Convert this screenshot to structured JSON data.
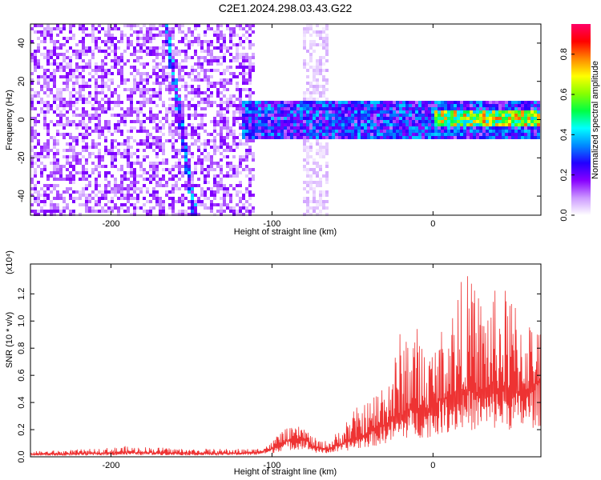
{
  "chart_data": [
    {
      "type": "heatmap",
      "title": "C2E1.2024.298.03.43.G22",
      "xlabel": "Height of straight line (km)",
      "ylabel": "Frequency (Hz)",
      "xlim": [
        -250,
        67
      ],
      "ylim": [
        -50,
        50
      ],
      "xticks": [
        -200,
        -100,
        0
      ],
      "yticks": [
        -40,
        -20,
        0,
        20,
        40
      ],
      "colorbar": {
        "label": "Normalized spectral amplitude",
        "range": [
          0,
          0.95
        ],
        "ticks": [
          "0.0",
          "0.2",
          "0.4",
          "0.6",
          "0.8"
        ],
        "colors": [
          "#ffffff",
          "#cc99ff",
          "#8800ff",
          "#2200ff",
          "#0088ff",
          "#00ffff",
          "#00ff44",
          "#88ff00",
          "#ffff00",
          "#ff8800",
          "#ff0000",
          "#ff0066"
        ]
      },
      "description_regions": [
        {
          "x_range": [
            -250,
            -110
          ],
          "y_range": [
            -50,
            50
          ],
          "amplitude_level": 0.12
        },
        {
          "x_range": [
            -80,
            -65
          ],
          "y_range": [
            -50,
            50
          ],
          "amplitude_level": 0.05
        },
        {
          "x_range": [
            -118,
            67
          ],
          "y_range": [
            -10,
            10
          ],
          "amplitude_level": 0.3
        },
        {
          "x_range": [
            0,
            67
          ],
          "y_range": [
            -3,
            5
          ],
          "amplitude_level": 0.7
        }
      ],
      "streak": {
        "x_start": -166,
        "y_start": 50,
        "x_end": -148,
        "y_end": -50
      }
    },
    {
      "type": "line",
      "ylabel": "SNR (10 * v/v)",
      "y_multiplier": "(x10⁴)",
      "xlabel": "Height of straight line (km)",
      "xlim": [
        -250,
        67
      ],
      "ylim": [
        0,
        1.42
      ],
      "xticks": [
        -200,
        -100,
        0
      ],
      "yticks": [
        "0.0",
        "0.2",
        "0.4",
        "0.6",
        "0.8",
        "1.0",
        "1.2"
      ],
      "color": "#ee3333",
      "series": [
        {
          "x": [
            -250,
            -230,
            -210,
            -190,
            -170,
            -150,
            -130,
            -110,
            -100,
            -95,
            -90,
            -85,
            -80,
            -75,
            -70,
            -65,
            -60,
            -55,
            -50,
            -45,
            -40,
            -35,
            -30,
            -25,
            -20,
            -15,
            -10,
            -5,
            0,
            5,
            10,
            15,
            20,
            25,
            30,
            35,
            40,
            45,
            50,
            55,
            60,
            65
          ],
          "values": [
            0.02,
            0.02,
            0.025,
            0.03,
            0.03,
            0.025,
            0.025,
            0.03,
            0.06,
            0.1,
            0.12,
            0.13,
            0.14,
            0.08,
            0.06,
            0.06,
            0.08,
            0.1,
            0.13,
            0.15,
            0.18,
            0.2,
            0.24,
            0.27,
            0.3,
            0.35,
            0.35,
            0.34,
            0.38,
            0.42,
            0.45,
            0.46,
            0.5,
            0.48,
            0.47,
            0.48,
            0.5,
            0.5,
            0.48,
            0.47,
            0.5,
            0.55
          ],
          "upper_envelope": [
            0.04,
            0.05,
            0.06,
            0.08,
            0.07,
            0.06,
            0.06,
            0.06,
            0.11,
            0.2,
            0.21,
            0.22,
            0.23,
            0.15,
            0.12,
            0.12,
            0.18,
            0.26,
            0.35,
            0.38,
            0.42,
            0.5,
            0.62,
            0.72,
            0.95,
            1.0,
            0.98,
            0.85,
            0.82,
            0.95,
            1.08,
            1.25,
            1.37,
            1.3,
            1.2,
            1.28,
            1.22,
            1.25,
            1.2,
            1.15,
            1.05,
            0.95
          ]
        }
      ]
    }
  ]
}
